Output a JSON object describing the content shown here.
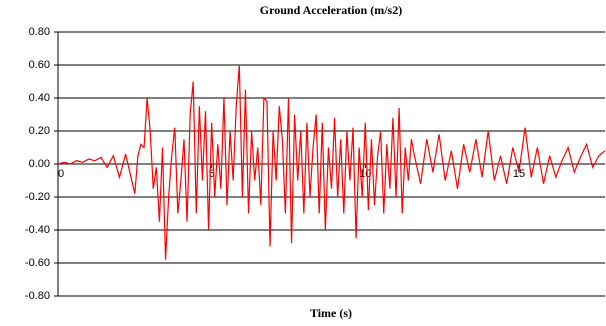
{
  "chart_data": {
    "type": "line",
    "title": "Ground Acceleration (m/s2)",
    "x_label": "Time (s)",
    "color": "#ff0000",
    "grid": true,
    "xlim": [
      0,
      17.8
    ],
    "xticks": [
      0,
      5,
      10,
      15
    ],
    "ylim": [
      -0.8,
      0.8
    ],
    "yticks": [
      {
        "value": 0.8,
        "label": "0.80"
      },
      {
        "value": 0.6,
        "label": "0.60"
      },
      {
        "value": 0.4,
        "label": "0.40"
      },
      {
        "value": 0.2,
        "label": "0.20"
      },
      {
        "value": 0,
        "label": "0.00"
      },
      {
        "value": -0.2,
        "label": "-0.20"
      },
      {
        "value": -0.4,
        "label": "-0.40"
      },
      {
        "value": -0.6,
        "label": "-0.60"
      },
      {
        "value": -0.8,
        "label": "-0.80"
      }
    ],
    "x": [
      0,
      0.2,
      0.4,
      0.6,
      0.8,
      1,
      1.2,
      1.4,
      1.6,
      1.8,
      2,
      2.2,
      2.4,
      2.5,
      2.6,
      2.7,
      2.8,
      2.9,
      3,
      3.1,
      3.2,
      3.3,
      3.4,
      3.5,
      3.6,
      3.7,
      3.8,
      3.9,
      4,
      4.1,
      4.2,
      4.3,
      4.4,
      4.5,
      4.6,
      4.7,
      4.8,
      4.9,
      5,
      5.1,
      5.2,
      5.3,
      5.4,
      5.5,
      5.6,
      5.7,
      5.8,
      5.9,
      6,
      6.1,
      6.2,
      6.3,
      6.4,
      6.5,
      6.6,
      6.7,
      6.8,
      6.9,
      7,
      7.1,
      7.2,
      7.3,
      7.4,
      7.5,
      7.6,
      7.7,
      7.8,
      7.9,
      8,
      8.1,
      8.2,
      8.3,
      8.4,
      8.5,
      8.6,
      8.7,
      8.8,
      8.9,
      9,
      9.1,
      9.2,
      9.3,
      9.4,
      9.5,
      9.6,
      9.7,
      9.8,
      9.9,
      10,
      10.1,
      10.2,
      10.3,
      10.4,
      10.5,
      10.6,
      10.7,
      10.8,
      10.9,
      11,
      11.1,
      11.2,
      11.3,
      11.4,
      11.5,
      11.6,
      11.8,
      12,
      12.2,
      12.4,
      12.6,
      12.8,
      13,
      13.2,
      13.4,
      13.6,
      13.8,
      14,
      14.2,
      14.4,
      14.6,
      14.8,
      15,
      15.2,
      15.4,
      15.6,
      15.8,
      16,
      16.2,
      16.4,
      16.6,
      16.8,
      17,
      17.2,
      17.4,
      17.6,
      17.8
    ],
    "values": [
      0,
      0.01,
      0,
      0.02,
      0.01,
      0.03,
      0.02,
      0.04,
      -0.02,
      0.05,
      -0.08,
      0.06,
      -0.1,
      -0.18,
      0.05,
      0.12,
      0.1,
      0.4,
      0.2,
      -0.15,
      -0.02,
      -0.35,
      0.1,
      -0.58,
      -0.2,
      0.05,
      0.22,
      -0.3,
      -0.1,
      0.15,
      -0.35,
      0.3,
      0.5,
      -0.3,
      0.35,
      -0.1,
      0.32,
      -0.4,
      0.25,
      -0.2,
      0.12,
      -0.15,
      0.4,
      -0.25,
      0.2,
      -0.1,
      0.35,
      0.6,
      -0.2,
      0.45,
      -0.3,
      0.2,
      -0.1,
      0.1,
      -0.25,
      0.4,
      0.38,
      -0.5,
      0.2,
      -0.1,
      0.35,
      0.15,
      -0.3,
      0.4,
      -0.48,
      0.3,
      -0.1,
      0.2,
      -0.3,
      0.25,
      -0.2,
      0.1,
      0.3,
      -0.3,
      0.25,
      -0.4,
      0.1,
      -0.15,
      0.28,
      -0.2,
      0.15,
      -0.3,
      0.2,
      -0.1,
      0.22,
      -0.45,
      0.1,
      -0.2,
      0.25,
      -0.28,
      0.15,
      -0.25,
      0.05,
      0.2,
      -0.3,
      0.12,
      -0.15,
      0.28,
      -0.2,
      0.34,
      -0.3,
      0.1,
      -0.1,
      0.15,
      0.05,
      -0.12,
      0.15,
      -0.05,
      0.18,
      -0.1,
      0.08,
      -0.15,
      0.12,
      -0.05,
      0.15,
      -0.08,
      0.2,
      -0.1,
      0.05,
      -0.12,
      0.1,
      -0.05,
      0.22,
      -0.08,
      0.1,
      -0.12,
      0.05,
      -0.08,
      0.02,
      0.1,
      -0.05,
      0.04,
      0.12,
      -0.02,
      0.05,
      0.08
    ]
  }
}
